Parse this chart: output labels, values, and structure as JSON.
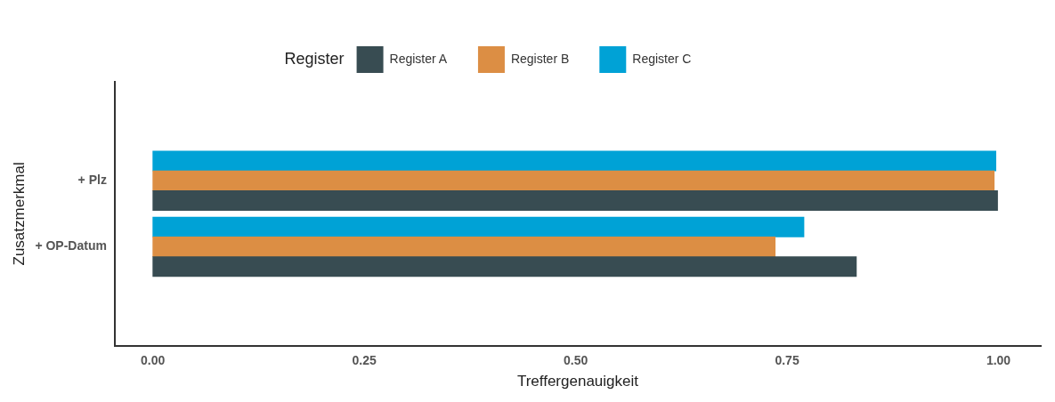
{
  "chart_data": {
    "type": "bar",
    "orientation": "horizontal",
    "xlabel": "Treffergenauigkeit",
    "ylabel": "Zusatzmerkmal",
    "legend_title": "Register",
    "legend": "top",
    "grid": false,
    "categories": [
      "+ Plz",
      "+ OP-Datum"
    ],
    "series": [
      {
        "name": "Register A",
        "color": "#384c52",
        "values": [
          0.999,
          0.832
        ]
      },
      {
        "name": "Register B",
        "color": "#dc8e44",
        "values": [
          0.995,
          0.736
        ]
      },
      {
        "name": "Register C",
        "color": "#00a2d6",
        "values": [
          0.997,
          0.77
        ]
      }
    ],
    "xlim": [
      -0.045,
      1.05
    ],
    "xticks": [
      {
        "value": 0,
        "label": "0.00"
      },
      {
        "value": 0.25,
        "label": "0.25"
      },
      {
        "value": 0.5,
        "label": "0.50"
      },
      {
        "value": 0.75,
        "label": "0.75"
      },
      {
        "value": 1,
        "label": "1.00"
      }
    ]
  }
}
